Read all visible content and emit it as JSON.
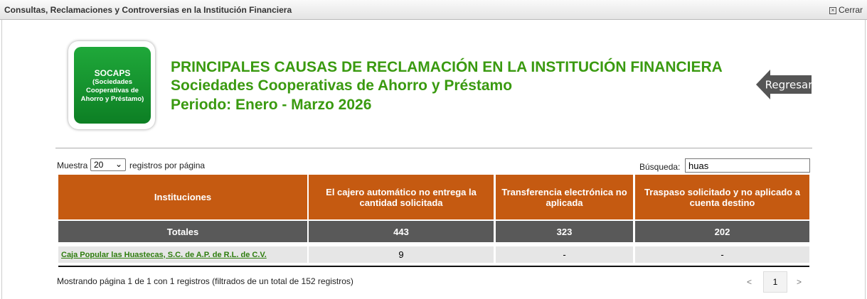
{
  "window": {
    "title": "Consultas, Reclamaciones y Controversias en la Institución Financiera",
    "close": "Cerrar"
  },
  "logo": {
    "title": "SOCAPS",
    "lines": [
      "(Sociedades",
      "Cooperativas de",
      "Ahorro y Préstamo)"
    ]
  },
  "header": {
    "title": "PRINCIPALES CAUSAS DE RECLAMACIÓN EN LA INSTITUCIÓN FINANCIERA",
    "subtitle": "Sociedades Cooperativas de Ahorro y Préstamo",
    "period": "Periodo: Enero - Marzo 2026"
  },
  "back": "Regresar",
  "controls": {
    "show_prefix": "Muestra",
    "page_size": "20",
    "show_suffix": "registros por página",
    "search_label": "Búsqueda:",
    "search_value": "huas"
  },
  "table": {
    "columns": [
      "Instituciones",
      "El cajero automático no entrega la cantidad solicitada",
      "Transferencia electrónica no aplicada",
      "Traspaso solicitado y no aplicado a cuenta destino"
    ],
    "totals": [
      "Totales",
      443,
      323,
      202
    ],
    "rows": [
      [
        "Caja Popular las Huastecas, S.C. de A.P. de R.L. de C.V.",
        9,
        "-",
        "-"
      ]
    ]
  },
  "footer": {
    "info": "Mostrando página 1 de 1 con 1 registros (filtrados de un total de 152 registros)",
    "pagination": {
      "prev": "<",
      "page": "1",
      "next": ">"
    }
  }
}
